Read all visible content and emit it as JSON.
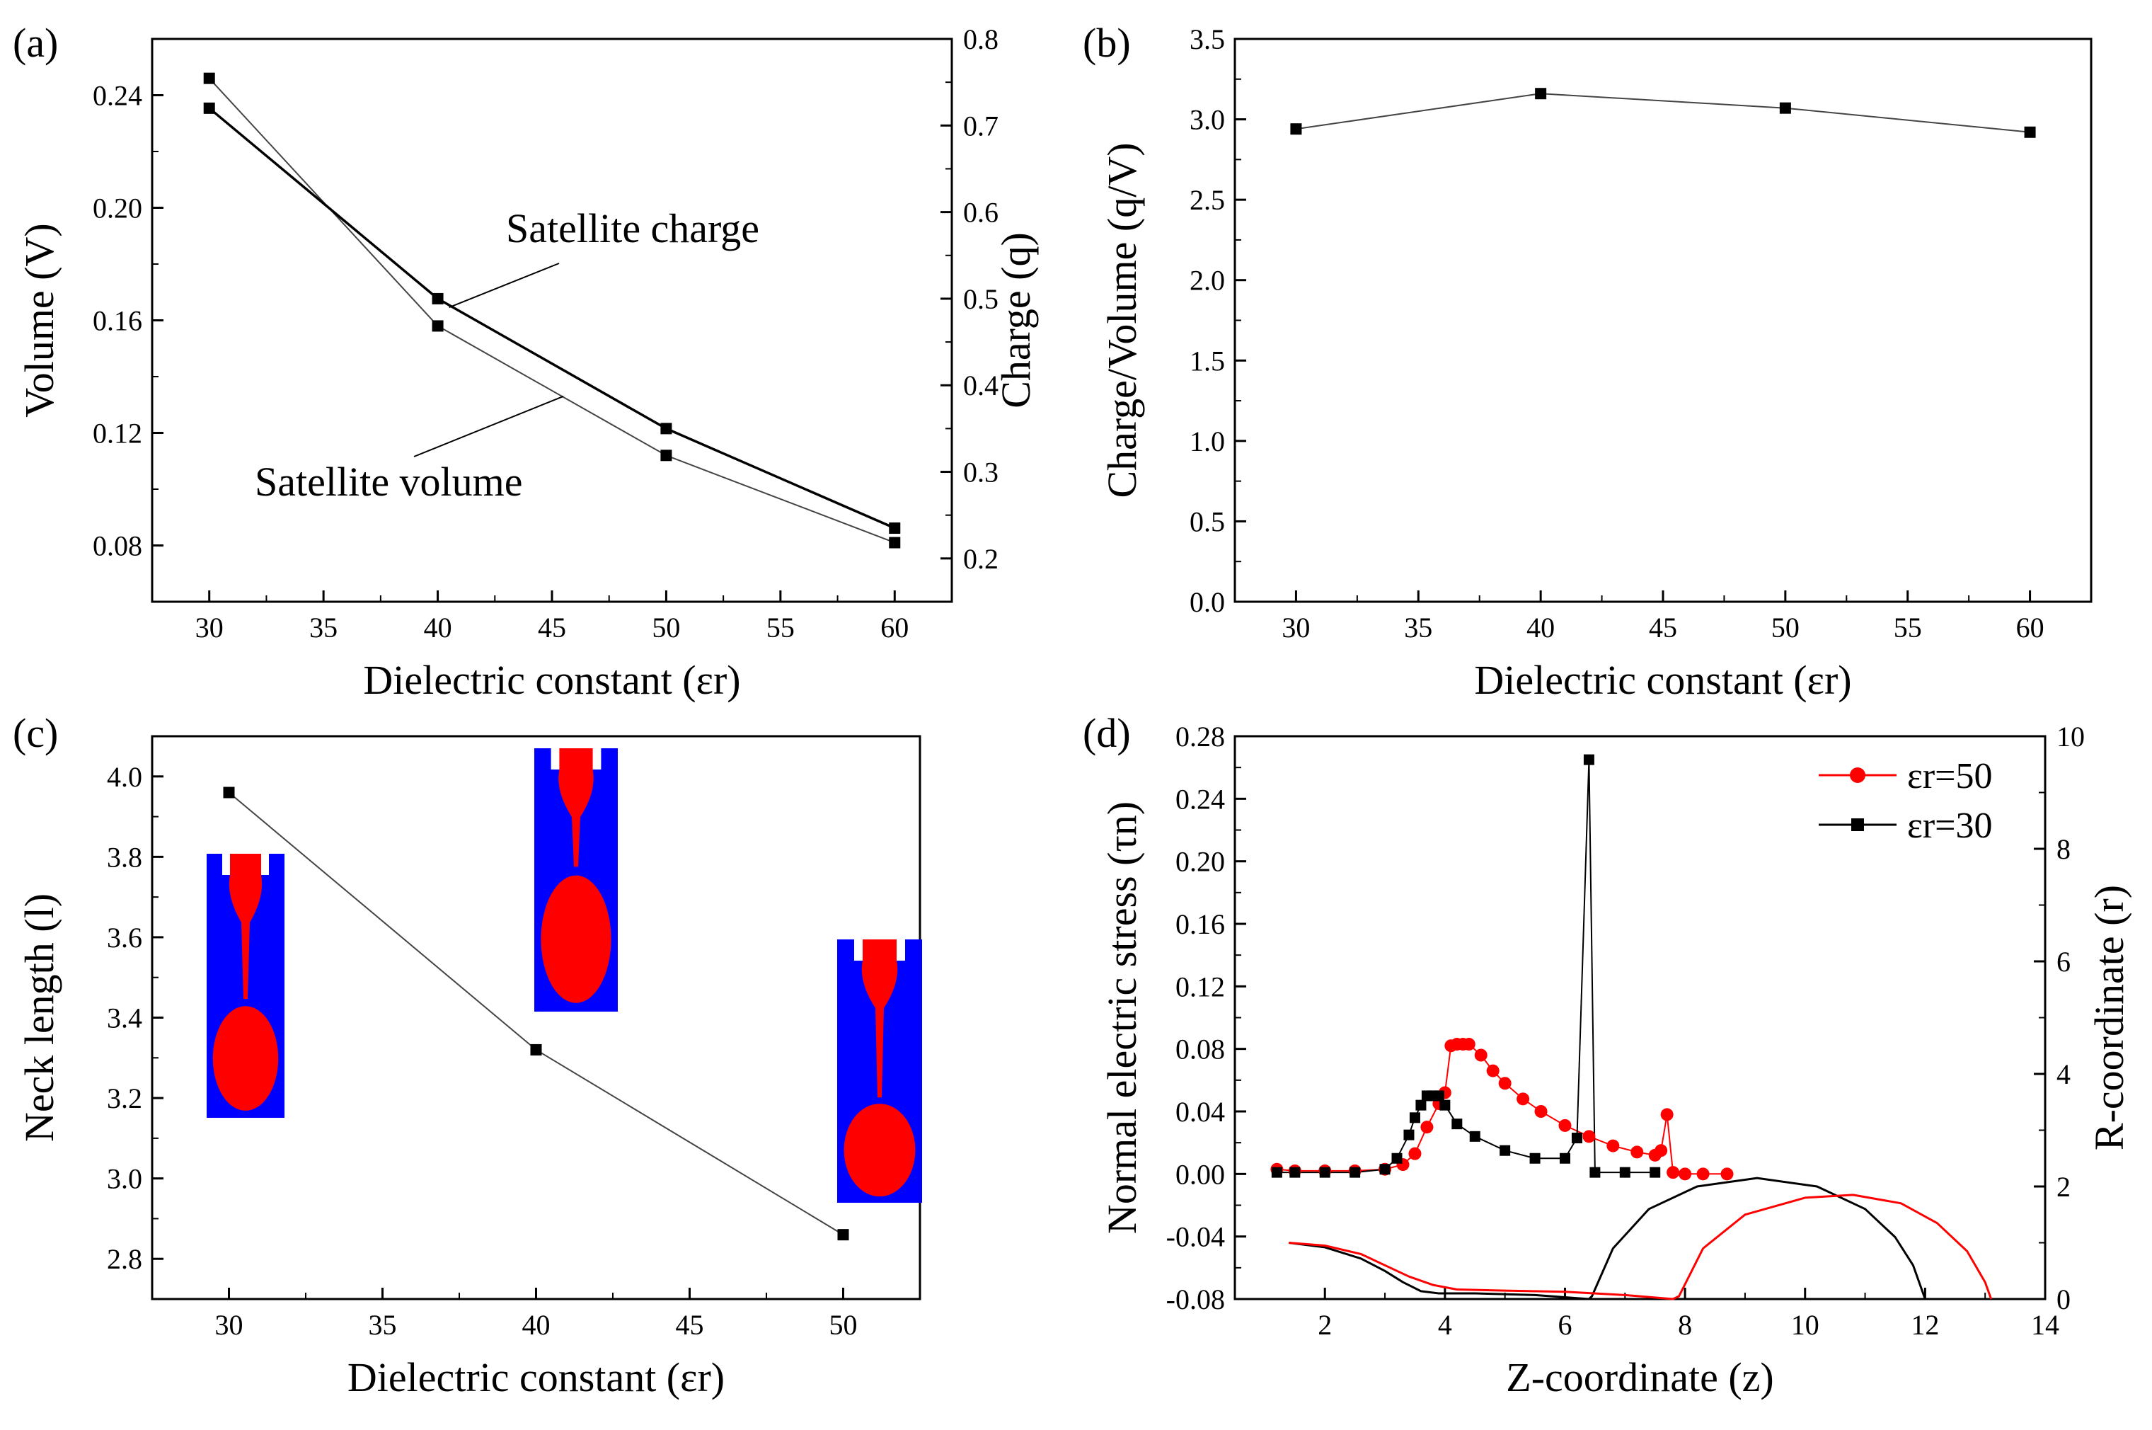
{
  "chart_data": [
    {
      "panel": "(a)",
      "type": "line",
      "xlabel": "Dielectric constant (εr)",
      "ylabel": "Volume (V)",
      "y2label": "Charge (q)",
      "xlim": [
        27.5,
        62.5
      ],
      "ylim": [
        0.06,
        0.26
      ],
      "y2lim": [
        0.15,
        0.8
      ],
      "xticks": [
        30,
        35,
        40,
        45,
        50,
        55,
        60
      ],
      "yticks": [
        0.08,
        0.12,
        0.16,
        0.2,
        0.24
      ],
      "y2ticks": [
        0.2,
        0.3,
        0.4,
        0.5,
        0.6,
        0.7,
        0.8
      ],
      "series": [
        {
          "name": "Satellite volume",
          "axis": "left",
          "x": [
            30,
            40,
            50,
            60
          ],
          "values": [
            0.246,
            0.158,
            0.112,
            0.081
          ]
        },
        {
          "name": "Satellite charge",
          "axis": "right",
          "x": [
            30,
            40,
            50,
            60
          ],
          "values": [
            0.72,
            0.5,
            0.35,
            0.235
          ]
        }
      ],
      "annotations": [
        {
          "text": "Satellite charge",
          "points_to": {
            "series": 1,
            "x": 40.5
          }
        },
        {
          "text": "Satellite volume",
          "points_to": {
            "series": 0,
            "x": 45.5
          }
        }
      ]
    },
    {
      "panel": "(b)",
      "type": "line",
      "xlabel": "Dielectric constant (εr)",
      "ylabel": "Charge/Volume (q/V)",
      "xlim": [
        27.5,
        62.5
      ],
      "ylim": [
        0,
        3.5
      ],
      "xticks": [
        30,
        35,
        40,
        45,
        50,
        55,
        60
      ],
      "yticks": [
        0.0,
        0.5,
        1.0,
        1.5,
        2.0,
        2.5,
        3.0,
        3.5
      ],
      "series": [
        {
          "x": [
            30,
            40,
            50,
            60
          ],
          "values": [
            2.94,
            3.16,
            3.07,
            2.92
          ]
        }
      ]
    },
    {
      "panel": "(c)",
      "type": "line",
      "xlabel": "Dielectric constant (εr)",
      "ylabel": "Neck length (l)",
      "xlim": [
        27.5,
        52.5
      ],
      "ylim": [
        2.7,
        4.1
      ],
      "xticks": [
        30,
        35,
        40,
        45,
        50
      ],
      "yticks": [
        2.8,
        3.0,
        3.2,
        3.4,
        3.6,
        3.8,
        4.0
      ],
      "series": [
        {
          "x": [
            30,
            40,
            50
          ],
          "values": [
            3.96,
            3.32,
            2.86
          ]
        }
      ],
      "insets": [
        {
          "illustrates": "εr=30",
          "nozzle_color": "#0000ff",
          "fluid_color": "#ff0000"
        },
        {
          "illustrates": "εr=40",
          "nozzle_color": "#0000ff",
          "fluid_color": "#ff0000"
        },
        {
          "illustrates": "εr=50",
          "nozzle_color": "#0000ff",
          "fluid_color": "#ff0000"
        }
      ]
    },
    {
      "panel": "(d)",
      "type": "line",
      "xlabel": "Z-coordinate (z)",
      "ylabel": "Normal electric stress (τn)",
      "y2label": "R-coordinate (r)",
      "xlim": [
        0.5,
        14
      ],
      "ylim": [
        -0.08,
        0.28
      ],
      "y2lim": [
        0,
        10
      ],
      "xticks": [
        2,
        4,
        6,
        8,
        10,
        12,
        14
      ],
      "yticks": [
        -0.08,
        -0.04,
        0.0,
        0.04,
        0.08,
        0.12,
        0.16,
        0.2,
        0.24,
        0.28
      ],
      "y2ticks": [
        0,
        2,
        4,
        6,
        8,
        10
      ],
      "legend": {
        "position": "top-right",
        "entries": [
          "εr=50",
          "εr=30"
        ]
      },
      "colors": {
        "er50": "#ff0000",
        "er30": "#000000"
      },
      "series": [
        {
          "name": "εr=50",
          "axis": "left",
          "marker": "circle",
          "color": "#ff0000",
          "x": [
            1.2,
            1.5,
            2.0,
            2.5,
            3.0,
            3.3,
            3.5,
            3.7,
            3.9,
            4.0,
            4.1,
            4.2,
            4.3,
            4.4,
            4.6,
            4.8,
            5.0,
            5.3,
            5.6,
            6.0,
            6.4,
            6.8,
            7.2,
            7.5,
            7.6,
            7.7,
            7.8,
            8.0,
            8.3,
            8.7
          ],
          "values": [
            0.003,
            0.002,
            0.002,
            0.002,
            0.003,
            0.006,
            0.013,
            0.03,
            0.045,
            0.052,
            0.082,
            0.083,
            0.083,
            0.083,
            0.076,
            0.066,
            0.058,
            0.048,
            0.04,
            0.031,
            0.024,
            0.018,
            0.014,
            0.012,
            0.015,
            0.038,
            0.001,
            0.0,
            0.0,
            0.0
          ]
        },
        {
          "name": "εr=30",
          "axis": "left",
          "marker": "square",
          "color": "#000000",
          "x": [
            1.2,
            1.5,
            2.0,
            2.5,
            3.0,
            3.2,
            3.4,
            3.5,
            3.6,
            3.7,
            3.8,
            3.9,
            4.0,
            4.2,
            4.5,
            5.0,
            5.5,
            6.0,
            6.2,
            6.4,
            6.5,
            7.0,
            7.5
          ],
          "values": [
            0.001,
            0.001,
            0.001,
            0.001,
            0.003,
            0.01,
            0.025,
            0.036,
            0.044,
            0.05,
            0.05,
            0.05,
            0.044,
            0.032,
            0.024,
            0.015,
            0.01,
            0.01,
            0.023,
            0.265,
            0.001,
            0.001,
            0.001
          ]
        },
        {
          "name": "εr=50 profile",
          "axis": "right",
          "color": "#ff0000",
          "x": [
            1.4,
            2.0,
            2.6,
            3.0,
            3.4,
            3.8,
            4.2,
            5.0,
            6.0,
            7.0,
            7.8,
            7.9,
            8.3,
            9.0,
            10.0,
            10.8,
            11.6,
            12.2,
            12.7,
            13.0,
            13.1
          ],
          "values": [
            1.0,
            0.95,
            0.8,
            0.6,
            0.4,
            0.25,
            0.17,
            0.15,
            0.13,
            0.07,
            0.0,
            0.05,
            0.9,
            1.5,
            1.8,
            1.85,
            1.7,
            1.35,
            0.85,
            0.3,
            0.0
          ]
        },
        {
          "name": "εr=30 profile",
          "axis": "right",
          "color": "#000000",
          "x": [
            1.4,
            2.0,
            2.6,
            3.0,
            3.3,
            3.6,
            3.9,
            4.5,
            5.5,
            6.4,
            6.45,
            6.8,
            7.4,
            8.2,
            9.2,
            10.2,
            11.0,
            11.5,
            11.8,
            12.0
          ],
          "values": [
            1.0,
            0.92,
            0.72,
            0.5,
            0.3,
            0.14,
            0.1,
            0.1,
            0.07,
            0.0,
            0.05,
            0.9,
            1.6,
            2.0,
            2.15,
            2.0,
            1.6,
            1.1,
            0.6,
            0.0
          ]
        }
      ]
    }
  ]
}
